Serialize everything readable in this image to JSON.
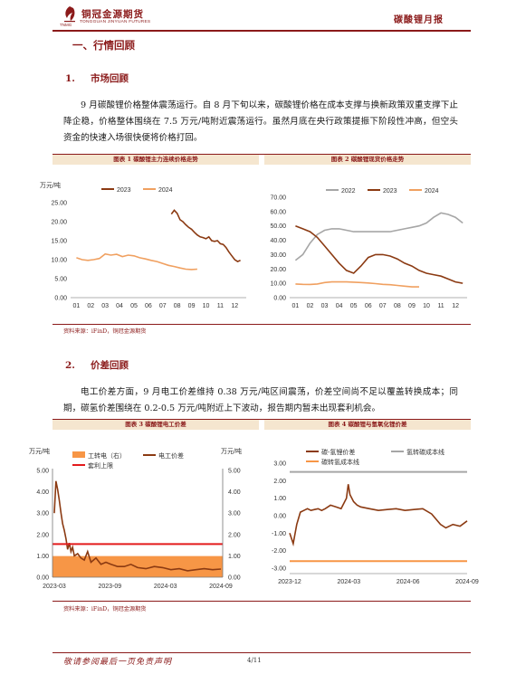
{
  "header": {
    "brand_cn": "铜冠金源期货",
    "brand_en": "TONGGUAN JINYUAN FUTURES",
    "logo_abbr": "TNMG",
    "report_type": "碳酸锂月报"
  },
  "section": {
    "title": "一、行情回顾"
  },
  "sub1": {
    "num": "1.",
    "title": "市场回顾"
  },
  "para1": "9 月碳酸锂价格整体震荡运行。自 8 月下旬以来，碳酸锂价格在成本支撑与换新政策双重支撑下止降企稳，价格整体围绕在 7.5 万元/吨附近震荡运行。虽然月底在央行政策提振下阶段性冲高，但空头资金的快速入场很快便将价格打回。",
  "figures_row1": {
    "fig1_title": "图表 1 碳酸锂主力连续价格走势",
    "fig2_title": "图表 2 碳酸锂现货价格走势",
    "source": "资料来源：iFinD，铜冠金源期货"
  },
  "sub2": {
    "num": "2.",
    "title": "价差回顾"
  },
  "para2": "电工价差方面，9 月电工价差维持 0.38 万元/吨区间震荡，价差空间尚不足以覆盖转换成本；同期，碳氢价差围绕在 0.2-0.5 万元/吨附近上下波动，报告期内暂未出现套利机会。",
  "figures_row2": {
    "fig3_title": "图表 3 碳酸锂电工价差",
    "fig4_title": "图表 4 碳酸锂与氢氧化锂价差",
    "source": "资料来源：iFinD，铜冠金源期货"
  },
  "footer": {
    "disclaimer": "敬请参阅最后一页免责声明",
    "page": "4/11"
  },
  "chart_data": [
    {
      "type": "line",
      "ylabel": "万元/吨",
      "ylim": [
        0,
        25
      ],
      "yticks": [
        "0.00",
        "5.00",
        "10.00",
        "15.00",
        "20.00",
        "25.00"
      ],
      "xticks": [
        "01",
        "02",
        "03",
        "04",
        "05",
        "06",
        "07",
        "08",
        "09",
        "10",
        "11",
        "12"
      ],
      "legend": "top-center",
      "series": [
        {
          "name": "2023",
          "color": "#8b3a12",
          "x": [
            7.6,
            7.8,
            8.0,
            8.2,
            8.4,
            8.6,
            8.8,
            9.0,
            9.2,
            9.4,
            9.6,
            9.8,
            10.0,
            10.2,
            10.4,
            10.6,
            10.8,
            11.0,
            11.2,
            11.4,
            11.6,
            11.8,
            12.0,
            12.2,
            12.4
          ],
          "y": [
            22.0,
            23.0,
            22.2,
            20.5,
            20.0,
            19.2,
            18.5,
            18.0,
            17.2,
            16.5,
            16.0,
            15.8,
            15.5,
            16.0,
            15.0,
            14.8,
            15.0,
            14.2,
            14.0,
            13.2,
            12.0,
            11.0,
            10.0,
            9.5,
            9.8
          ]
        },
        {
          "name": "2024",
          "color": "#f0a060",
          "x": [
            1.0,
            1.4,
            1.8,
            2.2,
            2.6,
            3.0,
            3.4,
            3.8,
            4.2,
            4.6,
            5.0,
            5.4,
            5.8,
            6.2,
            6.6,
            7.0,
            7.4,
            7.8,
            8.2,
            8.6,
            9.0,
            9.4
          ],
          "y": [
            10.5,
            10.0,
            9.8,
            10.0,
            10.3,
            11.5,
            11.2,
            11.4,
            10.8,
            11.2,
            11.0,
            10.5,
            10.2,
            9.8,
            9.5,
            9.0,
            8.5,
            8.2,
            7.8,
            7.5,
            7.4,
            7.5
          ]
        }
      ]
    },
    {
      "type": "line",
      "ylim": [
        0,
        70
      ],
      "yticks": [
        "0.00",
        "10.00",
        "20.00",
        "30.00",
        "40.00",
        "50.00",
        "60.00",
        "70.00"
      ],
      "xticks": [
        "01",
        "02",
        "03",
        "04",
        "05",
        "06",
        "07",
        "08",
        "09",
        "10",
        "11",
        "12"
      ],
      "legend": "top-center",
      "series": [
        {
          "name": "2022",
          "color": "#a6a6a6",
          "x": [
            1.0,
            1.5,
            2.0,
            2.5,
            3.0,
            3.5,
            4.0,
            4.5,
            5.0,
            5.5,
            6.0,
            6.5,
            7.0,
            7.5,
            8.0,
            8.5,
            9.0,
            9.5,
            10.0,
            10.5,
            11.0,
            11.5,
            12.0,
            12.5
          ],
          "y": [
            26,
            30,
            38,
            44,
            47,
            48,
            48,
            47,
            46,
            46,
            46,
            46,
            46,
            46,
            47,
            48,
            49,
            50,
            52,
            56,
            59,
            58,
            56,
            52
          ]
        },
        {
          "name": "2023",
          "color": "#8b3a12",
          "x": [
            1.0,
            1.5,
            2.0,
            2.5,
            3.0,
            3.5,
            4.0,
            4.5,
            5.0,
            5.5,
            6.0,
            6.5,
            7.0,
            7.5,
            8.0,
            8.5,
            9.0,
            9.5,
            10.0,
            10.5,
            11.0,
            11.5,
            12.0,
            12.5
          ],
          "y": [
            50,
            48,
            46,
            42,
            36,
            30,
            24,
            19,
            17,
            22,
            28,
            30,
            30,
            29,
            27,
            24,
            22,
            19,
            17,
            16,
            15,
            13,
            11,
            10
          ]
        },
        {
          "name": "2024",
          "color": "#f0a060",
          "x": [
            1.0,
            1.5,
            2.0,
            2.5,
            3.0,
            3.5,
            4.0,
            4.5,
            5.0,
            5.5,
            6.0,
            6.5,
            7.0,
            7.5,
            8.0,
            8.5,
            9.0,
            9.5
          ],
          "y": [
            9.5,
            9.3,
            9.2,
            9.5,
            10.5,
            11.0,
            11.0,
            11.0,
            10.8,
            10.5,
            10.2,
            9.8,
            9.3,
            9.0,
            8.5,
            8.0,
            7.5,
            7.5
          ]
        }
      ]
    },
    {
      "type": "line",
      "ylabel": "万元/吨",
      "ylabel_right": "万元/吨",
      "ylim": [
        0,
        5
      ],
      "yticks": [
        "0.00",
        "1.00",
        "2.00",
        "3.00",
        "4.00",
        "5.00"
      ],
      "xticks": [
        "2023-03",
        "2023-09",
        "2024-03",
        "2024-09"
      ],
      "legend": "top-center",
      "series": [
        {
          "name": "工转电（右）",
          "color": "#f79646",
          "kind": "area",
          "value": 0.99
        },
        {
          "name": "电工价差",
          "color": "#8b3a12",
          "x": [
            0,
            0.01,
            0.02,
            0.03,
            0.04,
            0.05,
            0.06,
            0.07,
            0.08,
            0.09,
            0.1,
            0.11,
            0.12,
            0.14,
            0.16,
            0.18,
            0.2,
            0.22,
            0.25,
            0.28,
            0.31,
            0.34,
            0.38,
            0.42,
            0.46,
            0.5,
            0.55,
            0.6,
            0.65,
            0.7,
            0.75,
            0.8,
            0.85,
            0.9,
            0.95,
            1.0
          ],
          "y": [
            3.0,
            4.5,
            4.1,
            3.6,
            3.0,
            2.5,
            2.2,
            1.8,
            1.3,
            1.6,
            1.2,
            1.4,
            1.0,
            1.1,
            0.9,
            0.8,
            1.2,
            0.7,
            0.9,
            0.6,
            0.7,
            0.6,
            0.5,
            0.5,
            0.6,
            0.45,
            0.4,
            0.5,
            0.45,
            0.35,
            0.4,
            0.3,
            0.35,
            0.4,
            0.35,
            0.38
          ]
        },
        {
          "name": "套利上限",
          "color": "#e31a1c",
          "value": 1.55
        }
      ]
    },
    {
      "type": "line",
      "ylim": [
        -3,
        3
      ],
      "yticks": [
        "-3.00",
        "-2.00",
        "-1.00",
        "0.00",
        "1.00",
        "2.00",
        "3.00"
      ],
      "xticks": [
        "2023-12",
        "2024-03",
        "2024-06",
        "2024-09"
      ],
      "legend": "top",
      "series": [
        {
          "name": "碳-氢锂价差",
          "color": "#8b3a12",
          "x": [
            0,
            0.02,
            0.04,
            0.06,
            0.08,
            0.1,
            0.12,
            0.14,
            0.16,
            0.18,
            0.2,
            0.23,
            0.26,
            0.29,
            0.32,
            0.33,
            0.34,
            0.36,
            0.38,
            0.4,
            0.45,
            0.5,
            0.55,
            0.6,
            0.65,
            0.7,
            0.75,
            0.8,
            0.85,
            0.88,
            0.92,
            0.96,
            1.0
          ],
          "y": [
            -1.0,
            -1.6,
            -0.5,
            0.2,
            0.3,
            0.4,
            0.3,
            0.35,
            0.4,
            0.3,
            0.4,
            0.6,
            0.5,
            0.4,
            1.0,
            1.8,
            1.2,
            0.8,
            0.6,
            0.5,
            0.4,
            0.3,
            0.35,
            0.4,
            0.3,
            0.35,
            0.4,
            0.1,
            -0.5,
            -0.7,
            -0.5,
            -0.6,
            -0.3
          ]
        },
        {
          "name": "氢转碳成本线",
          "color": "#a6a6a6",
          "value": 2.5
        },
        {
          "name": "碳转氢成本线",
          "color": "#f79646",
          "value": -2.6
        }
      ]
    }
  ]
}
